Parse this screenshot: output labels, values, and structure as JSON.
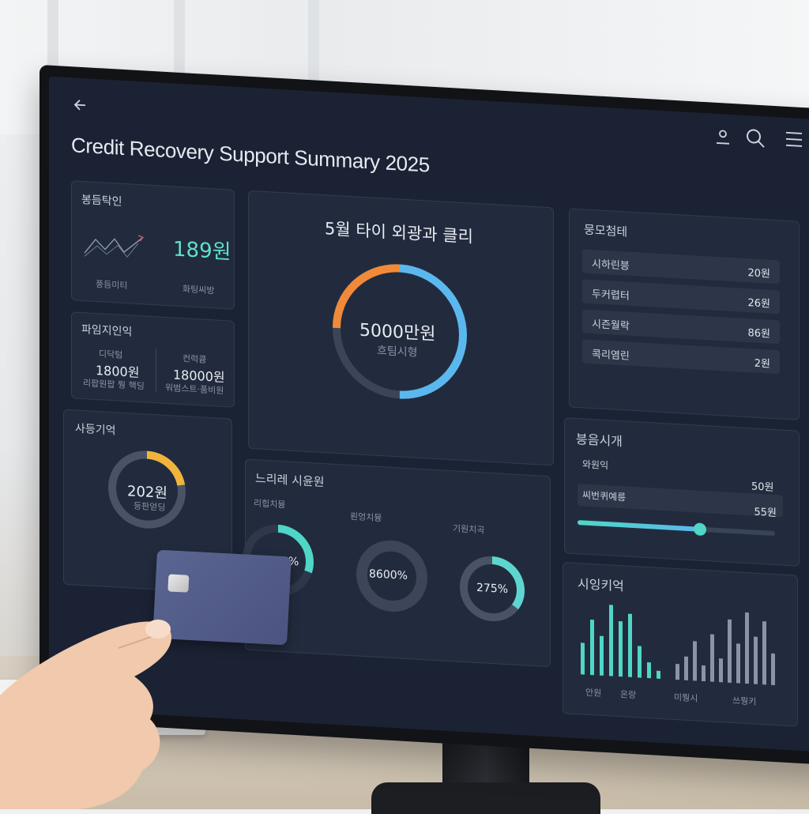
{
  "header": {
    "title": "Credit Recovery Support Summary 2025",
    "back_icon": "arrow-left-icon",
    "user_icon": "user-icon",
    "search_icon": "search-icon",
    "menu_icon": "menu-icon"
  },
  "card_trend": {
    "title": "봉듬탁인",
    "value": "189원",
    "caption_left": "풍듬미티",
    "caption_right": "화팅씨방"
  },
  "card_split": {
    "title": "파임지인익",
    "left_label": "디닥텀",
    "left_value": "1800원",
    "left_caption": "리팝원팝 뭥 핵딩",
    "right_label": "컨럭큠",
    "right_value": "18000원",
    "right_caption": "워범스트·품비원"
  },
  "card_ring_small": {
    "title": "사등기억",
    "value": "202원",
    "caption": "등판얻딩",
    "progress": 0.22,
    "color": "#f0b43c"
  },
  "card_main": {
    "title": "5월 타이 외광과 클리",
    "value": "5000만원",
    "caption": "흐팀시형",
    "progress_orange": 0.25,
    "progress_blue": 0.5
  },
  "card_list": {
    "title": "뭉모첨테",
    "rows": [
      {
        "label": "시하린븡",
        "value": "20원"
      },
      {
        "label": "두커렵터",
        "value": "26원"
      },
      {
        "label": "시즌월락",
        "value": "86원"
      },
      {
        "label": "콕리염린",
        "value": "2원"
      }
    ]
  },
  "card_slider": {
    "title": "븡음시개",
    "row1_label": "와원익",
    "row1_value": "50원",
    "row2_label": "씨번퀴예릉",
    "row2_value": "55원",
    "slider_value": 0.62
  },
  "card_rings": {
    "title": "느리레 시윤원",
    "rings": [
      {
        "label": "리힙치뮹",
        "value": "%",
        "progress": 0.3,
        "color": "#4fd6c6"
      },
      {
        "label": "뢴엉치뮹",
        "value": "8600%",
        "progress": 0.0,
        "color": "#4fd6c6"
      },
      {
        "label": "기원치곡",
        "value": "275%",
        "progress": 0.35,
        "color": "#5fd5d0"
      }
    ]
  },
  "card_bars": {
    "title": "시잉키억",
    "teal_labels": [
      "안원",
      "온랑"
    ],
    "grey_labels": [
      "미뭥시",
      "쓰뭥키"
    ],
    "teal_values": [
      4,
      7,
      5,
      9,
      7,
      8,
      4,
      2,
      1
    ],
    "grey_values": [
      2,
      3,
      5,
      2,
      6,
      3,
      8,
      5,
      9,
      6,
      8,
      4
    ],
    "teal_color": "#4fd6c6",
    "grey_color": "#8b93a6"
  }
}
